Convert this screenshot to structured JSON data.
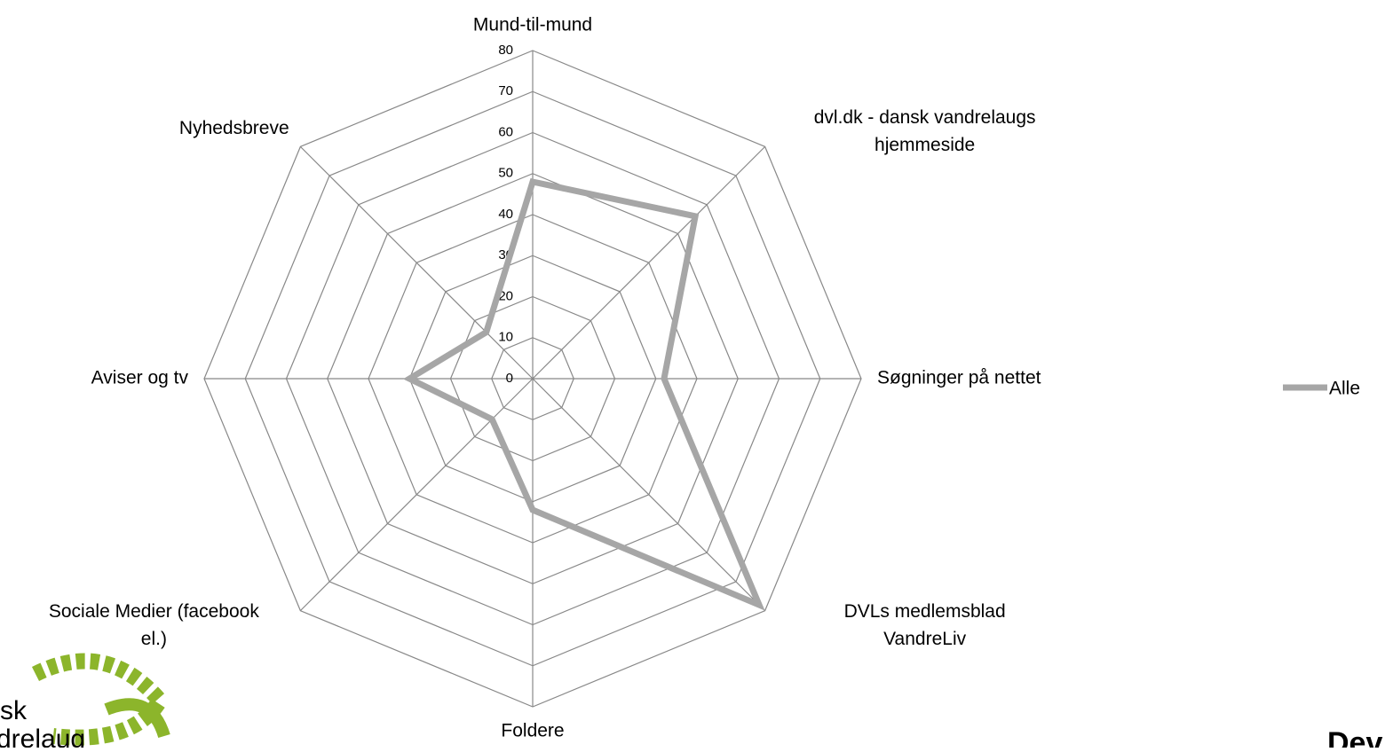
{
  "chart_data": {
    "type": "radar",
    "categories": [
      "Mund-til-mund",
      "dvl.dk - dansk vandrelaugs\nhjemmeside",
      "Søgninger på nettet",
      "DVLs medlemsblad\nVandreLiv",
      "Foldere",
      "Sociale Medier (facebook\nel.)",
      "Aviser og tv",
      "Nyhedsbreve"
    ],
    "series": [
      {
        "name": "Alle",
        "color": "#a6a6a6",
        "values": [
          48,
          56,
          32,
          78,
          32,
          14,
          30,
          16
        ]
      }
    ],
    "ylim": [
      0,
      80
    ],
    "yticks": [
      0,
      10,
      20,
      30,
      40,
      50,
      60,
      70,
      80
    ],
    "grid": true,
    "legend": "right"
  },
  "logos": {
    "left": [
      "sk",
      "drelaug"
    ],
    "right": "Dev"
  }
}
